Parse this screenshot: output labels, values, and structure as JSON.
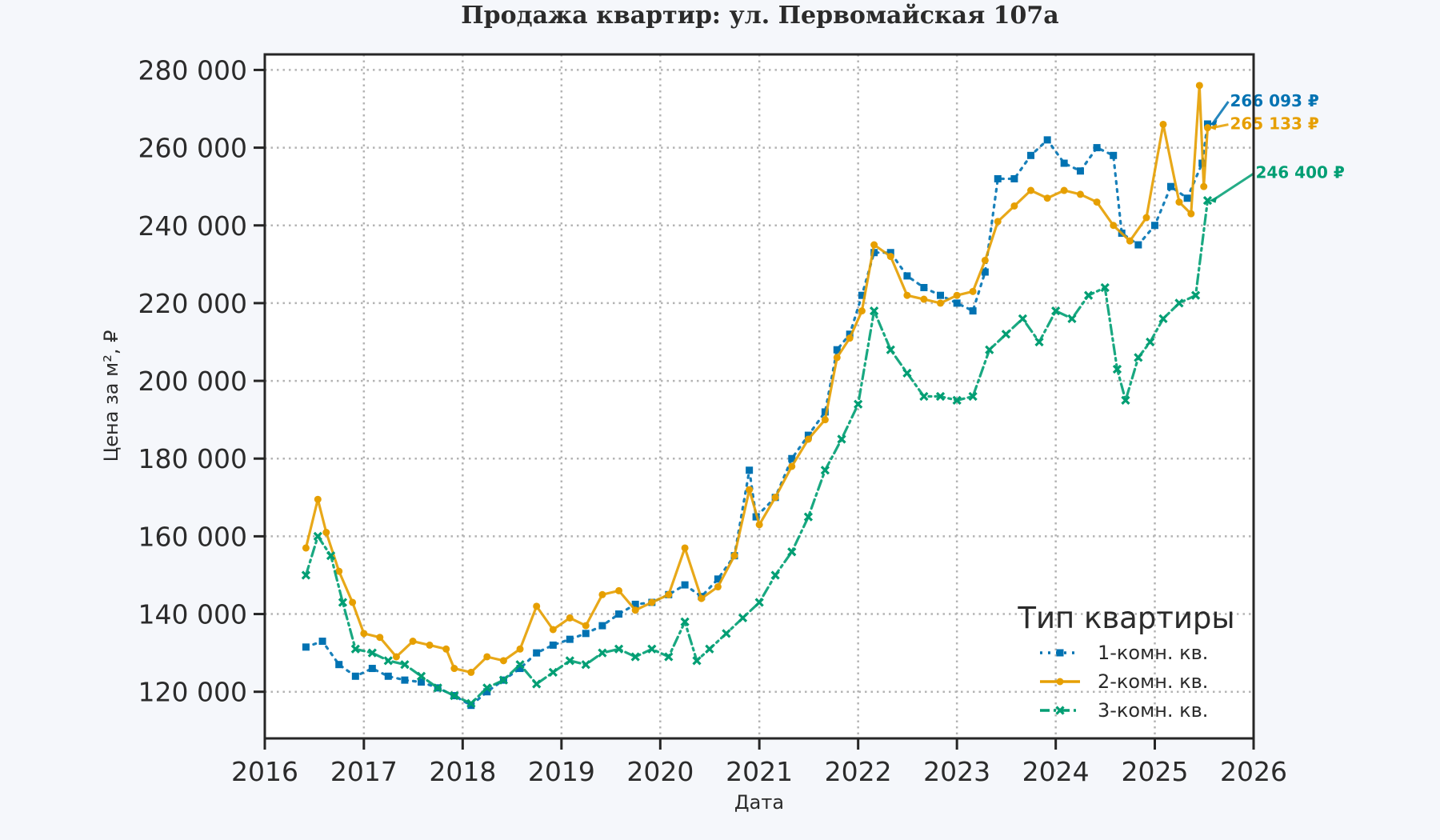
{
  "chart_data": {
    "type": "line",
    "title": "Продажа квартир: ул. Первомайская 107а",
    "xlabel": "Дата",
    "ylabel": "Цена за м², ₽",
    "xlim": [
      "2016-01-01",
      "2026-01-01"
    ],
    "ylim": [
      108000,
      284000
    ],
    "x_ticks": [
      "2016",
      "2017",
      "2018",
      "2019",
      "2020",
      "2021",
      "2022",
      "2023",
      "2024",
      "2025",
      "2026"
    ],
    "y_ticks": [
      120000,
      140000,
      160000,
      180000,
      200000,
      220000,
      240000,
      260000,
      280000
    ],
    "y_tick_labels": [
      "120 000",
      "140 000",
      "160 000",
      "180 000",
      "200 000",
      "220 000",
      "240 000",
      "260 000",
      "280 000"
    ],
    "grid": true,
    "legend": {
      "title": "Тип квартиры",
      "placement": "lower-right",
      "entries": [
        "1-комн. кв.",
        "2-комн. кв.",
        "3-комн. кв."
      ]
    },
    "series": [
      {
        "name": "1-комн. кв.",
        "color": "#0072b2",
        "line_style": "dotted",
        "marker": "square",
        "points": [
          [
            "2016-06-01",
            131500
          ],
          [
            "2016-08-01",
            133000
          ],
          [
            "2016-10-01",
            127000
          ],
          [
            "2016-12-01",
            124000
          ],
          [
            "2017-02-01",
            126000
          ],
          [
            "2017-04-01",
            124000
          ],
          [
            "2017-06-01",
            123000
          ],
          [
            "2017-08-01",
            122500
          ],
          [
            "2017-10-01",
            121000
          ],
          [
            "2017-12-01",
            119000
          ],
          [
            "2018-02-01",
            116500
          ],
          [
            "2018-04-01",
            120000
          ],
          [
            "2018-06-01",
            123000
          ],
          [
            "2018-08-01",
            126000
          ],
          [
            "2018-10-01",
            130000
          ],
          [
            "2018-12-01",
            132000
          ],
          [
            "2019-02-01",
            133500
          ],
          [
            "2019-04-01",
            135000
          ],
          [
            "2019-06-01",
            137000
          ],
          [
            "2019-08-01",
            140000
          ],
          [
            "2019-10-01",
            142500
          ],
          [
            "2019-12-01",
            143000
          ],
          [
            "2020-02-01",
            145000
          ],
          [
            "2020-04-01",
            147500
          ],
          [
            "2020-06-01",
            144500
          ],
          [
            "2020-08-01",
            149000
          ],
          [
            "2020-10-01",
            155000
          ],
          [
            "2020-11-25",
            177000
          ],
          [
            "2020-12-20",
            165000
          ],
          [
            "2021-03-01",
            170000
          ],
          [
            "2021-05-01",
            180000
          ],
          [
            "2021-07-01",
            186000
          ],
          [
            "2021-09-01",
            192000
          ],
          [
            "2021-10-15",
            208000
          ],
          [
            "2021-12-01",
            212000
          ],
          [
            "2022-01-15",
            222000
          ],
          [
            "2022-03-01",
            233000
          ],
          [
            "2022-05-01",
            233000
          ],
          [
            "2022-07-01",
            227000
          ],
          [
            "2022-09-01",
            224000
          ],
          [
            "2022-11-01",
            222000
          ],
          [
            "2023-01-01",
            220000
          ],
          [
            "2023-03-01",
            218000
          ],
          [
            "2023-04-15",
            228000
          ],
          [
            "2023-06-01",
            252000
          ],
          [
            "2023-08-01",
            252000
          ],
          [
            "2023-10-01",
            258000
          ],
          [
            "2023-12-01",
            262000
          ],
          [
            "2024-02-01",
            256000
          ],
          [
            "2024-04-01",
            254000
          ],
          [
            "2024-06-01",
            260000
          ],
          [
            "2024-08-01",
            258000
          ],
          [
            "2024-09-01",
            238000
          ],
          [
            "2024-11-01",
            235000
          ],
          [
            "2025-01-01",
            240000
          ],
          [
            "2025-03-01",
            250000
          ],
          [
            "2025-05-01",
            247000
          ],
          [
            "2025-06-25",
            256000
          ],
          [
            "2025-07-15",
            266093
          ]
        ]
      },
      {
        "name": "2-комн. кв.",
        "color": "#e69f00",
        "line_style": "solid",
        "marker": "circle",
        "points": [
          [
            "2016-06-01",
            157000
          ],
          [
            "2016-07-15",
            169500
          ],
          [
            "2016-08-15",
            161000
          ],
          [
            "2016-10-01",
            151000
          ],
          [
            "2016-11-20",
            143000
          ],
          [
            "2017-01-01",
            135000
          ],
          [
            "2017-03-01",
            134000
          ],
          [
            "2017-05-01",
            129000
          ],
          [
            "2017-07-01",
            133000
          ],
          [
            "2017-09-01",
            132000
          ],
          [
            "2017-11-01",
            131000
          ],
          [
            "2017-12-01",
            126000
          ],
          [
            "2018-02-01",
            125000
          ],
          [
            "2018-04-01",
            129000
          ],
          [
            "2018-06-01",
            128000
          ],
          [
            "2018-08-01",
            131000
          ],
          [
            "2018-10-01",
            142000
          ],
          [
            "2018-12-01",
            136000
          ],
          [
            "2019-02-01",
            139000
          ],
          [
            "2019-04-01",
            137000
          ],
          [
            "2019-06-01",
            145000
          ],
          [
            "2019-08-01",
            146000
          ],
          [
            "2019-10-01",
            141000
          ],
          [
            "2019-12-01",
            143000
          ],
          [
            "2020-02-01",
            145000
          ],
          [
            "2020-04-01",
            157000
          ],
          [
            "2020-06-01",
            144000
          ],
          [
            "2020-08-01",
            147000
          ],
          [
            "2020-10-01",
            155000
          ],
          [
            "2020-11-25",
            172000
          ],
          [
            "2021-01-01",
            163000
          ],
          [
            "2021-03-01",
            170000
          ],
          [
            "2021-05-01",
            178000
          ],
          [
            "2021-07-01",
            185000
          ],
          [
            "2021-09-01",
            190000
          ],
          [
            "2021-10-15",
            206000
          ],
          [
            "2021-12-01",
            211000
          ],
          [
            "2022-01-15",
            218000
          ],
          [
            "2022-03-01",
            235000
          ],
          [
            "2022-05-01",
            232000
          ],
          [
            "2022-07-01",
            222000
          ],
          [
            "2022-09-01",
            221000
          ],
          [
            "2022-11-01",
            220000
          ],
          [
            "2023-01-01",
            222000
          ],
          [
            "2023-03-01",
            223000
          ],
          [
            "2023-04-15",
            231000
          ],
          [
            "2023-06-01",
            241000
          ],
          [
            "2023-08-01",
            245000
          ],
          [
            "2023-10-01",
            249000
          ],
          [
            "2023-12-01",
            247000
          ],
          [
            "2024-02-01",
            249000
          ],
          [
            "2024-04-01",
            248000
          ],
          [
            "2024-06-01",
            246000
          ],
          [
            "2024-08-01",
            240000
          ],
          [
            "2024-10-01",
            236000
          ],
          [
            "2024-12-01",
            242000
          ],
          [
            "2025-02-01",
            266000
          ],
          [
            "2025-04-01",
            246000
          ],
          [
            "2025-05-15",
            243000
          ],
          [
            "2025-06-15",
            276000
          ],
          [
            "2025-07-01",
            250000
          ],
          [
            "2025-07-15",
            265133
          ]
        ]
      },
      {
        "name": "3-комн. кв.",
        "color": "#009e73",
        "line_style": "dashdot",
        "marker": "x",
        "points": [
          [
            "2016-06-01",
            150000
          ],
          [
            "2016-07-15",
            160000
          ],
          [
            "2016-09-01",
            155000
          ],
          [
            "2016-10-15",
            143000
          ],
          [
            "2016-12-01",
            131000
          ],
          [
            "2017-02-01",
            130000
          ],
          [
            "2017-04-01",
            128000
          ],
          [
            "2017-06-01",
            127000
          ],
          [
            "2017-08-01",
            124000
          ],
          [
            "2017-10-01",
            121000
          ],
          [
            "2017-12-01",
            119000
          ],
          [
            "2018-02-01",
            117000
          ],
          [
            "2018-04-01",
            121000
          ],
          [
            "2018-06-01",
            123000
          ],
          [
            "2018-08-01",
            127000
          ],
          [
            "2018-10-01",
            122000
          ],
          [
            "2018-12-01",
            125000
          ],
          [
            "2019-02-01",
            128000
          ],
          [
            "2019-04-01",
            127000
          ],
          [
            "2019-06-01",
            130000
          ],
          [
            "2019-08-01",
            131000
          ],
          [
            "2019-10-01",
            129000
          ],
          [
            "2019-12-01",
            131000
          ],
          [
            "2020-02-01",
            129000
          ],
          [
            "2020-04-01",
            138000
          ],
          [
            "2020-05-15",
            128000
          ],
          [
            "2020-07-01",
            131000
          ],
          [
            "2020-09-01",
            135000
          ],
          [
            "2020-11-01",
            139000
          ],
          [
            "2021-01-01",
            143000
          ],
          [
            "2021-03-01",
            150000
          ],
          [
            "2021-05-01",
            156000
          ],
          [
            "2021-07-01",
            165000
          ],
          [
            "2021-09-01",
            177000
          ],
          [
            "2021-11-01",
            185000
          ],
          [
            "2022-01-01",
            194000
          ],
          [
            "2022-03-01",
            218000
          ],
          [
            "2022-05-01",
            208000
          ],
          [
            "2022-07-01",
            202000
          ],
          [
            "2022-09-01",
            196000
          ],
          [
            "2022-11-01",
            196000
          ],
          [
            "2023-01-01",
            195000
          ],
          [
            "2023-03-01",
            196000
          ],
          [
            "2023-05-01",
            208000
          ],
          [
            "2023-07-01",
            212000
          ],
          [
            "2023-09-01",
            216000
          ],
          [
            "2023-11-01",
            210000
          ],
          [
            "2024-01-01",
            218000
          ],
          [
            "2024-03-01",
            216000
          ],
          [
            "2024-05-01",
            222000
          ],
          [
            "2024-07-01",
            224000
          ],
          [
            "2024-08-15",
            203000
          ],
          [
            "2024-09-15",
            195000
          ],
          [
            "2024-11-01",
            206000
          ],
          [
            "2024-12-15",
            210000
          ],
          [
            "2025-02-01",
            216000
          ],
          [
            "2025-04-01",
            220000
          ],
          [
            "2025-06-01",
            222000
          ],
          [
            "2025-07-15",
            246400
          ]
        ]
      }
    ],
    "annotations": [
      {
        "text": "266 093 ₽",
        "series": "1-комн. кв.",
        "value": 266093,
        "date": "2025-07-15",
        "color": "#0072b2"
      },
      {
        "text": "265 133 ₽",
        "series": "2-комн. кв.",
        "value": 265133,
        "date": "2025-07-15",
        "color": "#e69f00"
      },
      {
        "text": "246 400 ₽",
        "series": "3-комн. кв.",
        "value": 246400,
        "date": "2025-07-15",
        "color": "#009e73"
      }
    ]
  }
}
